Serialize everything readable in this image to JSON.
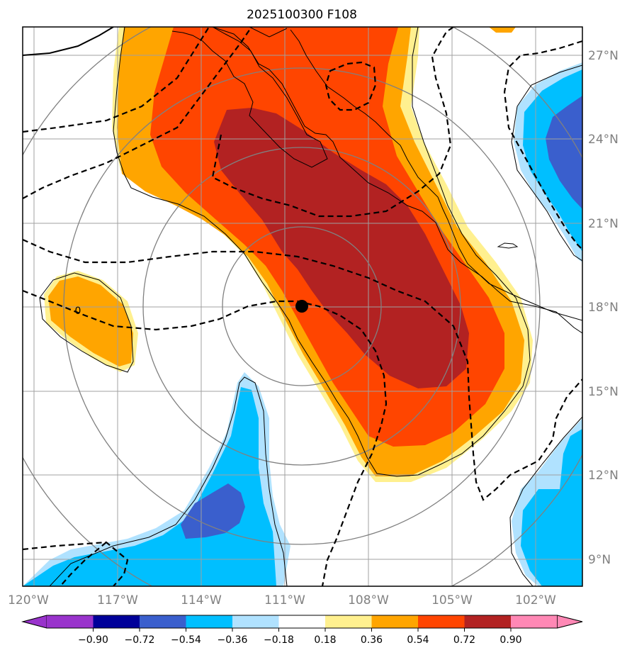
{
  "title": "2025100300 F108",
  "lon_labels": [
    "120°W",
    "117°W",
    "114°W",
    "111°W",
    "108°W",
    "105°W",
    "102°W"
  ],
  "lat_labels": [
    "27°N",
    "24°N",
    "21°N",
    "18°N",
    "15°N",
    "12°N",
    "9°N"
  ],
  "contour_label": "0",
  "colorbar": {
    "tick_labels": [
      "−0.90",
      "−0.72",
      "−0.54",
      "−0.36",
      "−0.18",
      "0.18",
      "0.36",
      "0.54",
      "0.72",
      "0.90"
    ],
    "colors": [
      "#9933cc",
      "#000099",
      "#3a5fcd",
      "#00bfff",
      "#b0e2ff",
      "#ffffff",
      "#fff08f",
      "#ffa500",
      "#ff4500",
      "#b22222",
      "#ff88b5"
    ]
  },
  "storm_center": {
    "lat": 18,
    "lon": -110.5
  },
  "range_rings": 4,
  "colors": {
    "dark_red": "#b22222",
    "orange_red": "#ff4500",
    "orange": "#ffa500",
    "light_yellow": "#fff08f",
    "deep_sky_blue": "#00bfff",
    "light_blue": "#b0e2ff",
    "royal_blue": "#3a5fcd",
    "grid": "#a0a0a0",
    "ring": "#808080"
  }
}
